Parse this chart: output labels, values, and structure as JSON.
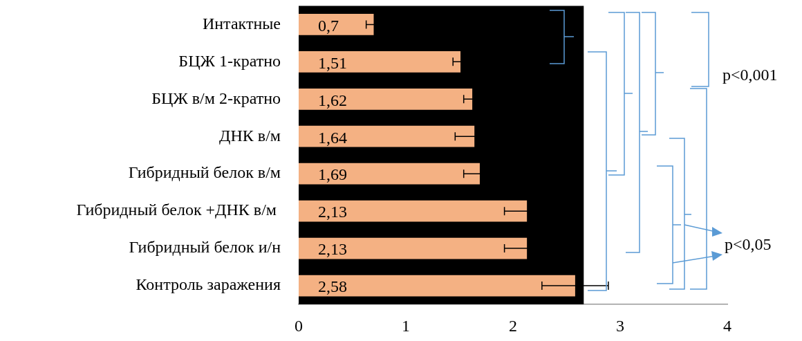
{
  "chart_data": {
    "type": "bar",
    "orientation": "horizontal",
    "categories": [
      "Интактные",
      "БЦЖ 1-кратно",
      "БЦЖ в/м 2-кратно",
      "ДНК в/м",
      "Гибридный белок в/м",
      "Гибридный белок +ДНК в/м ",
      "Гибридный белок и/н",
      "Контроль заражения"
    ],
    "values": [
      0.7,
      1.51,
      1.62,
      1.64,
      1.69,
      2.13,
      2.13,
      2.58
    ],
    "errors": [
      0.07,
      0.07,
      0.08,
      0.18,
      0.15,
      0.21,
      0.21,
      0.31
    ],
    "value_labels": [
      "0,7",
      "1,51",
      "1,62",
      "1,64",
      "1,69",
      "2,13",
      "2,13",
      "2,58"
    ],
    "color": "#f4b183",
    "xlim": [
      0,
      4
    ],
    "xticks": [
      0,
      1,
      2,
      3,
      4
    ],
    "bands": [
      {
        "axis": "x",
        "from": 0,
        "to": 2.66,
        "color": "#000000"
      }
    ],
    "grid": false,
    "annotations": [
      "p<0,001",
      "p<0,05"
    ]
  }
}
